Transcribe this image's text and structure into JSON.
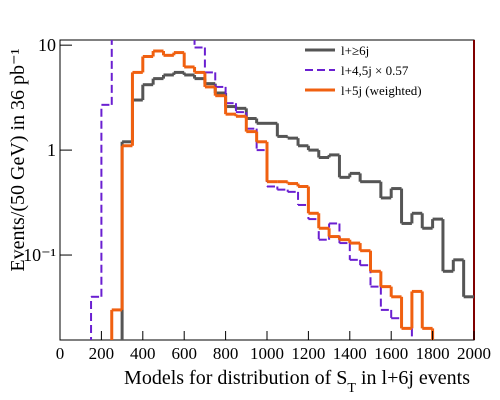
{
  "chart_data": {
    "type": "histogram",
    "ylabel": "Events/(50 GeV) in 36 pb⁻¹",
    "xlabel_parts": [
      "Models for distribution of S",
      "T",
      " in l+6j events"
    ],
    "bins": [
      0,
      50,
      100,
      150,
      200,
      250,
      300,
      350,
      400,
      450,
      500,
      550,
      600,
      650,
      700,
      750,
      800,
      850,
      900,
      950,
      1000,
      1050,
      1100,
      1150,
      1200,
      1250,
      1300,
      1350,
      1400,
      1450,
      1500,
      1550,
      1600,
      1650,
      1700,
      1750,
      1800,
      1850,
      1900,
      1950,
      2000
    ],
    "series": [
      {
        "name": "l+≥6j",
        "color": "#555555",
        "dash": false,
        "values": [
          0,
          0,
          0,
          0,
          0,
          0,
          1.2,
          3.0,
          4.2,
          4.8,
          5.2,
          5.5,
          5.2,
          4.8,
          4.3,
          3.5,
          2.6,
          2.5,
          2.0,
          1.8,
          1.8,
          1.35,
          1.3,
          1.1,
          1.0,
          0.85,
          0.9,
          0.55,
          0.6,
          0.5,
          0.5,
          0.35,
          0.43,
          0.2,
          0.25,
          0.18,
          0.22,
          0.07,
          0.09,
          0.04
        ]
      },
      {
        "name": "l+4,5j × 0.57",
        "color": "#6a1fd1",
        "dash": true,
        "values": [
          0,
          0,
          0,
          0.04,
          2.7,
          12,
          12,
          12,
          12,
          12,
          12,
          12,
          12,
          9.5,
          5.5,
          4.0,
          2.8,
          2.3,
          1.6,
          1.0,
          0.45,
          0.42,
          0.4,
          0.3,
          0.22,
          0.14,
          0.2,
          0.13,
          0.09,
          0.08,
          0.05,
          0.03,
          0.025,
          0.02,
          0,
          0,
          0,
          0,
          0,
          0
        ]
      },
      {
        "name": "l+5j (weighted)",
        "color": "#f06010",
        "dash": false,
        "values": [
          0,
          0,
          0,
          0,
          0,
          0.03,
          1.1,
          5.5,
          7.8,
          8.8,
          8.0,
          8.5,
          6.2,
          5.5,
          4.0,
          3.3,
          2.2,
          2.1,
          1.5,
          1.2,
          0.5,
          0.5,
          0.48,
          0.45,
          0.25,
          0.18,
          0.15,
          0.14,
          0.13,
          0.11,
          0.07,
          0.05,
          0.04,
          0.02,
          0.045,
          0.02,
          0,
          0,
          0,
          0
        ]
      }
    ],
    "xlim": [
      0,
      2000
    ],
    "xticks": [
      0,
      200,
      400,
      600,
      800,
      1000,
      1200,
      1400,
      1600,
      1800,
      2000
    ],
    "ylim": [
      0.0155,
      11.2
    ],
    "log_y": true,
    "yticks": [
      {
        "value": 0.1,
        "label": "10⁻¹"
      },
      1,
      10
    ],
    "legend": "upper right"
  }
}
